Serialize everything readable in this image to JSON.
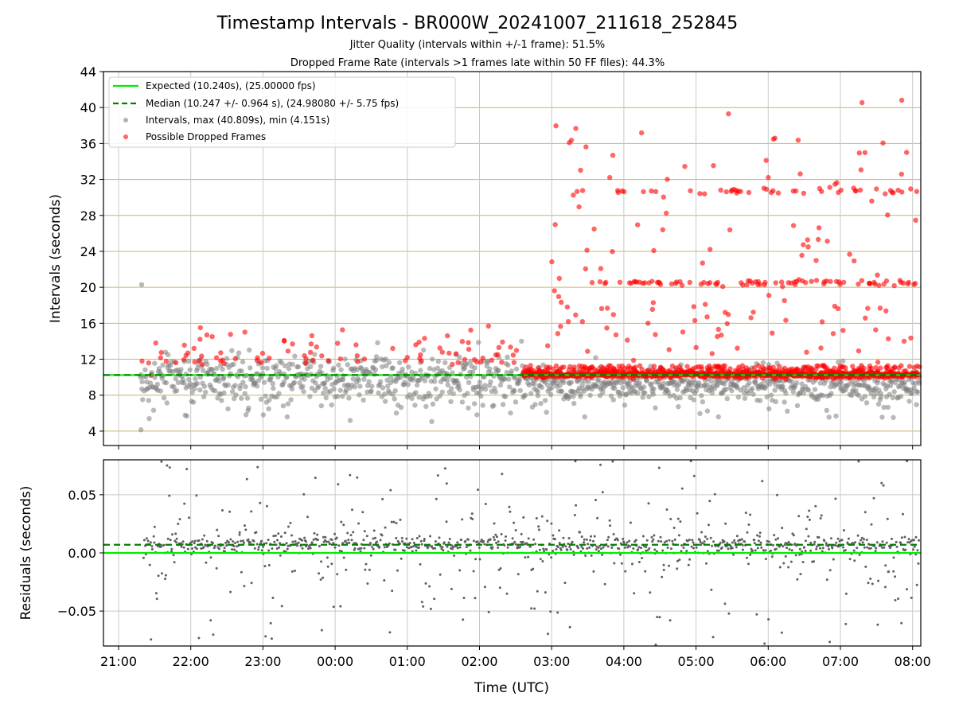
{
  "chart_data": [
    {
      "panel": "intervals",
      "type": "scatter",
      "title": "Timestamp Intervals - BR000W_20241007_211618_252845",
      "subtitle_lines": [
        "Jitter Quality (intervals within +/-1 frame): 51.5%",
        "Dropped Frame Rate (intervals >1 frames late within 50 FF files): 44.3%"
      ],
      "ylabel": "Intervals (seconds)",
      "xlabel": "",
      "ylim": [
        2.4,
        44
      ],
      "yticks": [
        4,
        8,
        12,
        16,
        20,
        24,
        28,
        32,
        36,
        40,
        44
      ],
      "x_range": [
        "21:16",
        "08:05"
      ],
      "grid": "horizontal-goldenrod-and-vertical-gray",
      "legend_position": "upper-left",
      "expected_value": 10.24,
      "median_value": 10.247,
      "max_value": 40.809,
      "min_value": 4.151,
      "legend": [
        {
          "label": "Expected (10.240s), (25.00000 fps)",
          "style": "solid-line",
          "color": "#00ee00"
        },
        {
          "label": "Median (10.247 +/- 0.964 s), (24.98080 +/- 5.75 fps)",
          "style": "dashed-line",
          "color": "#008000"
        },
        {
          "label": "Intervals, max (40.809s), min (4.151s)",
          "style": "marker",
          "color": "#808080"
        },
        {
          "label": "Possible Dropped Frames",
          "style": "marker",
          "color": "#ff0000"
        }
      ],
      "series": [
        {
          "name": "Intervals, max (40.809s), min (4.151s)",
          "color": "#808080",
          "points_note": "~1100 points, mostly 8-12 s with spread 4-14 s; outliers at 21:20 (20.3 s), 21:20 (4.15 s)"
        },
        {
          "name": "Possible Dropped Frames",
          "color": "#ff0000",
          "points_note": "from 21:30 to 02:35 sparse 11-18 s; from 02:35 onward dense at ~10.3 s with clusters near 20.5 s and 30.7 s, spread up to 40.8 s"
        }
      ]
    },
    {
      "panel": "residuals",
      "type": "scatter",
      "ylabel": "Residuals (seconds)",
      "xlabel": "Time (UTC)",
      "ylim": [
        -0.08,
        0.08
      ],
      "yticks": [
        -0.05,
        0.0,
        0.05
      ],
      "ytick_labels": [
        "−0.05",
        "0.00",
        "0.05"
      ],
      "xticks": [
        "21:00",
        "22:00",
        "23:00",
        "00:00",
        "01:00",
        "02:00",
        "03:00",
        "04:00",
        "05:00",
        "06:00",
        "07:00",
        "08:00"
      ],
      "expected_residual": 0.0,
      "median_residual": 0.007,
      "series": [
        {
          "name": "Residuals",
          "color": "#606060",
          "points_note": "~1000 small dots, dense band 0.0-0.015 s, spread -0.08 to 0.08 s"
        }
      ]
    }
  ]
}
